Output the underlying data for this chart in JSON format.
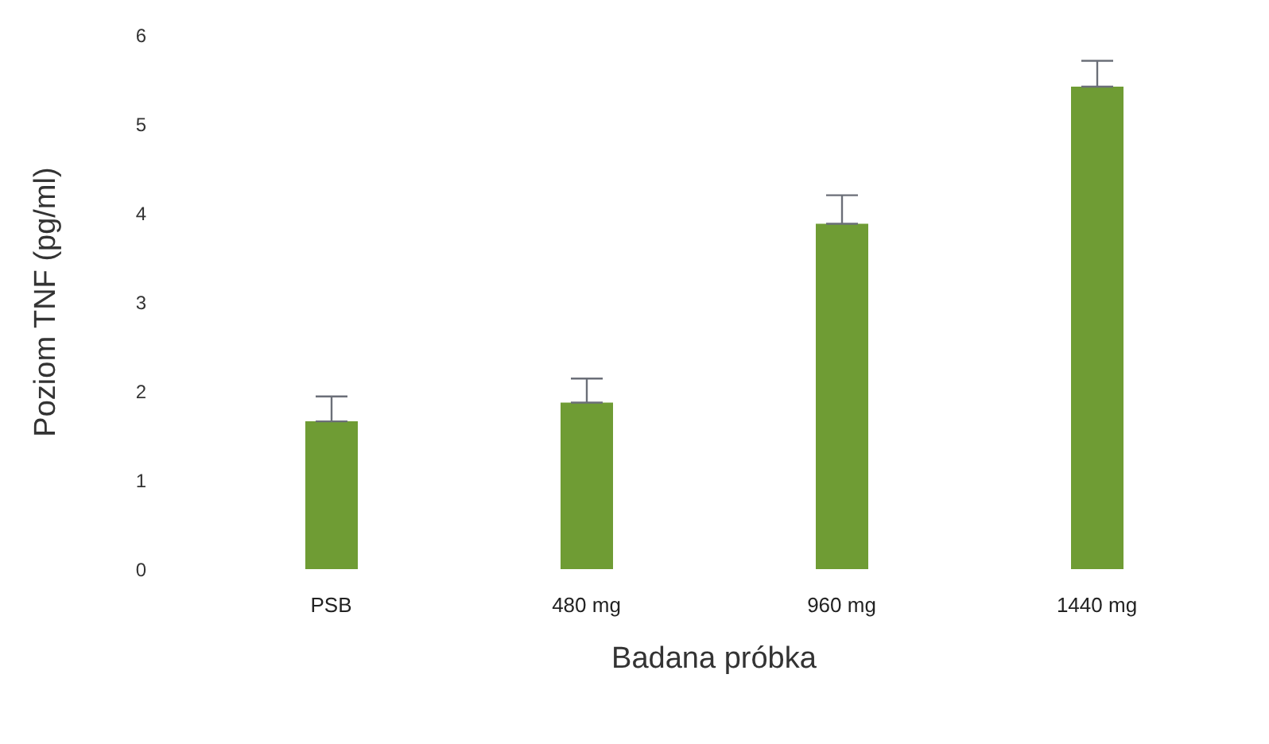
{
  "chart_data": {
    "type": "bar",
    "xlabel": "Badana próbka",
    "ylabel": "Poziom TNF (pg/ml)",
    "categories": [
      "PSB",
      "480 mg",
      "960 mg",
      "1440 mg"
    ],
    "values": [
      1.66,
      1.87,
      3.88,
      5.42
    ],
    "errors": [
      [
        1.66,
        1.94
      ],
      [
        1.87,
        2.14
      ],
      [
        3.88,
        4.2
      ],
      [
        5.42,
        5.71
      ]
    ],
    "color": "#6f9c34",
    "ylim": [
      0,
      6
    ],
    "yticks": [
      0,
      1,
      2,
      3,
      4,
      5,
      6
    ],
    "grid": false,
    "legend": false
  }
}
